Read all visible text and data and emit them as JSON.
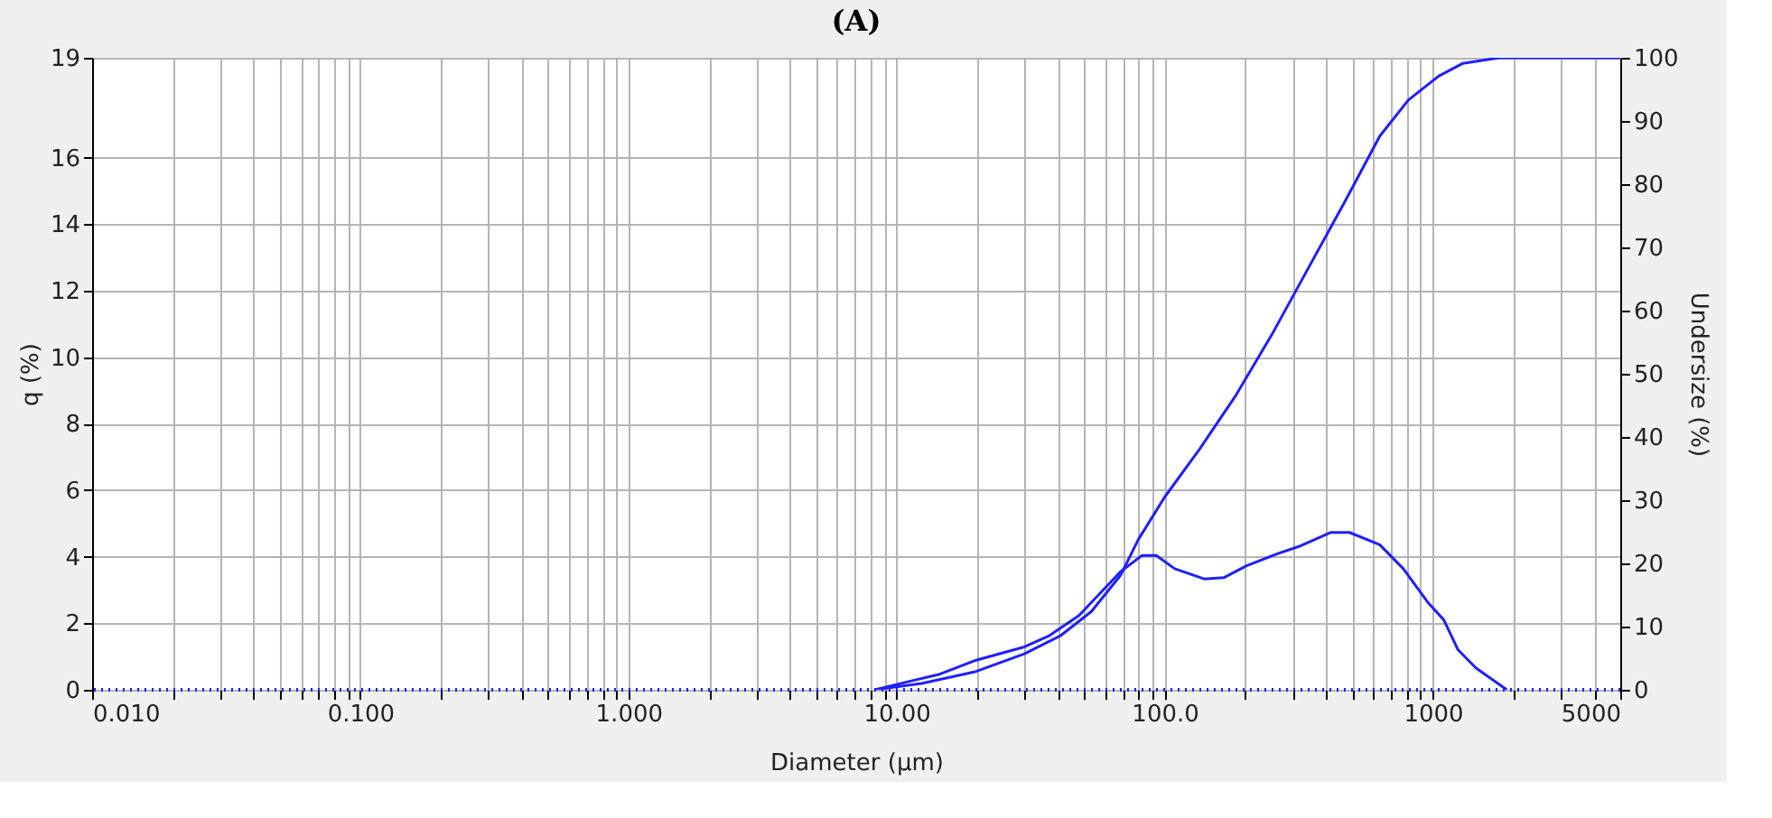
{
  "chart_data": {
    "type": "line",
    "title": "(A)",
    "xlabel": "Diameter (µm)",
    "ylabel": "q (%)",
    "y2label": "Undersize (%)",
    "log": "x",
    "grid": true,
    "line_style": "solid",
    "marker": "none",
    "xlim": [
      0.01,
      5000
    ],
    "ylim": [
      0,
      19
    ],
    "y2lim": [
      0,
      100
    ],
    "xticks": [
      {
        "value": 0.01,
        "label": "0.010"
      },
      {
        "value": 0.02,
        "label": null
      },
      {
        "value": 0.03,
        "label": null
      },
      {
        "value": 0.04,
        "label": null
      },
      {
        "value": 0.05,
        "label": null
      },
      {
        "value": 0.06,
        "label": null
      },
      {
        "value": 0.07,
        "label": null
      },
      {
        "value": 0.08,
        "label": null
      },
      {
        "value": 0.09,
        "label": null
      },
      {
        "value": 0.1,
        "label": "0.100"
      },
      {
        "value": 0.2,
        "label": null
      },
      {
        "value": 0.3,
        "label": null
      },
      {
        "value": 0.4,
        "label": null
      },
      {
        "value": 0.5,
        "label": null
      },
      {
        "value": 0.6,
        "label": null
      },
      {
        "value": 0.7,
        "label": null
      },
      {
        "value": 0.8,
        "label": null
      },
      {
        "value": 0.9,
        "label": null
      },
      {
        "value": 1,
        "label": "1.000"
      },
      {
        "value": 2,
        "label": null
      },
      {
        "value": 3,
        "label": null
      },
      {
        "value": 4,
        "label": null
      },
      {
        "value": 5,
        "label": null
      },
      {
        "value": 6,
        "label": null
      },
      {
        "value": 7,
        "label": null
      },
      {
        "value": 8,
        "label": null
      },
      {
        "value": 9,
        "label": null
      },
      {
        "value": 10,
        "label": "10.00"
      },
      {
        "value": 20,
        "label": null
      },
      {
        "value": 30,
        "label": null
      },
      {
        "value": 40,
        "label": null
      },
      {
        "value": 50,
        "label": null
      },
      {
        "value": 60,
        "label": null
      },
      {
        "value": 70,
        "label": null
      },
      {
        "value": 80,
        "label": null
      },
      {
        "value": 90,
        "label": null
      },
      {
        "value": 100,
        "label": "100.0"
      },
      {
        "value": 200,
        "label": null
      },
      {
        "value": 300,
        "label": null
      },
      {
        "value": 400,
        "label": null
      },
      {
        "value": 500,
        "label": null
      },
      {
        "value": 600,
        "label": null
      },
      {
        "value": 700,
        "label": null
      },
      {
        "value": 800,
        "label": null
      },
      {
        "value": 900,
        "label": null
      },
      1000,
      {
        "value": 2000,
        "label": null
      },
      {
        "value": 3000,
        "label": null
      },
      {
        "value": 4000,
        "label": null
      },
      5000
    ],
    "yticks": [
      0,
      2,
      4,
      6,
      8,
      10,
      12,
      14,
      16,
      19
    ],
    "y2ticks": [
      0,
      10,
      20,
      30,
      40,
      50,
      60,
      70,
      80,
      90,
      100
    ],
    "ref_lines": [
      {
        "axis": "y",
        "value": 0,
        "line_style": "dotted",
        "color": "#1f1fff"
      }
    ],
    "series": [
      {
        "color": "#1f1fff",
        "x": [
          8.3,
          10,
          14.5,
          19.8,
          30,
          36.8,
          47.9,
          68.4,
          82.4,
          93,
          109,
          141,
          166,
          202,
          263,
          322,
          417,
          489,
          634,
          776,
          955,
          1099,
          1242,
          1450,
          1888
        ],
        "values": [
          0,
          0.16,
          0.47,
          0.89,
          1.29,
          1.61,
          2.23,
          3.55,
          4.04,
          4.04,
          3.64,
          3.33,
          3.37,
          3.73,
          4.09,
          4.33,
          4.73,
          4.73,
          4.36,
          3.64,
          2.64,
          2.1,
          1.2,
          0.65,
          0
        ]
      },
      {
        "color": "#1f1fff",
        "axis": "y2",
        "x": [
          8.3,
          12.4,
          19.8,
          30,
          41,
          53.3,
          68.4,
          79.8,
          100,
          135,
          185,
          251,
          343,
          468,
          634,
          810,
          1050,
          1290,
          1770,
          5000
        ],
        "values": [
          0,
          1,
          2.9,
          5.7,
          8.6,
          12.4,
          18.1,
          23.8,
          30.5,
          38.1,
          46.7,
          56.2,
          66.7,
          77.1,
          87.6,
          93.3,
          97.1,
          99.1,
          100,
          100
        ]
      }
    ]
  }
}
